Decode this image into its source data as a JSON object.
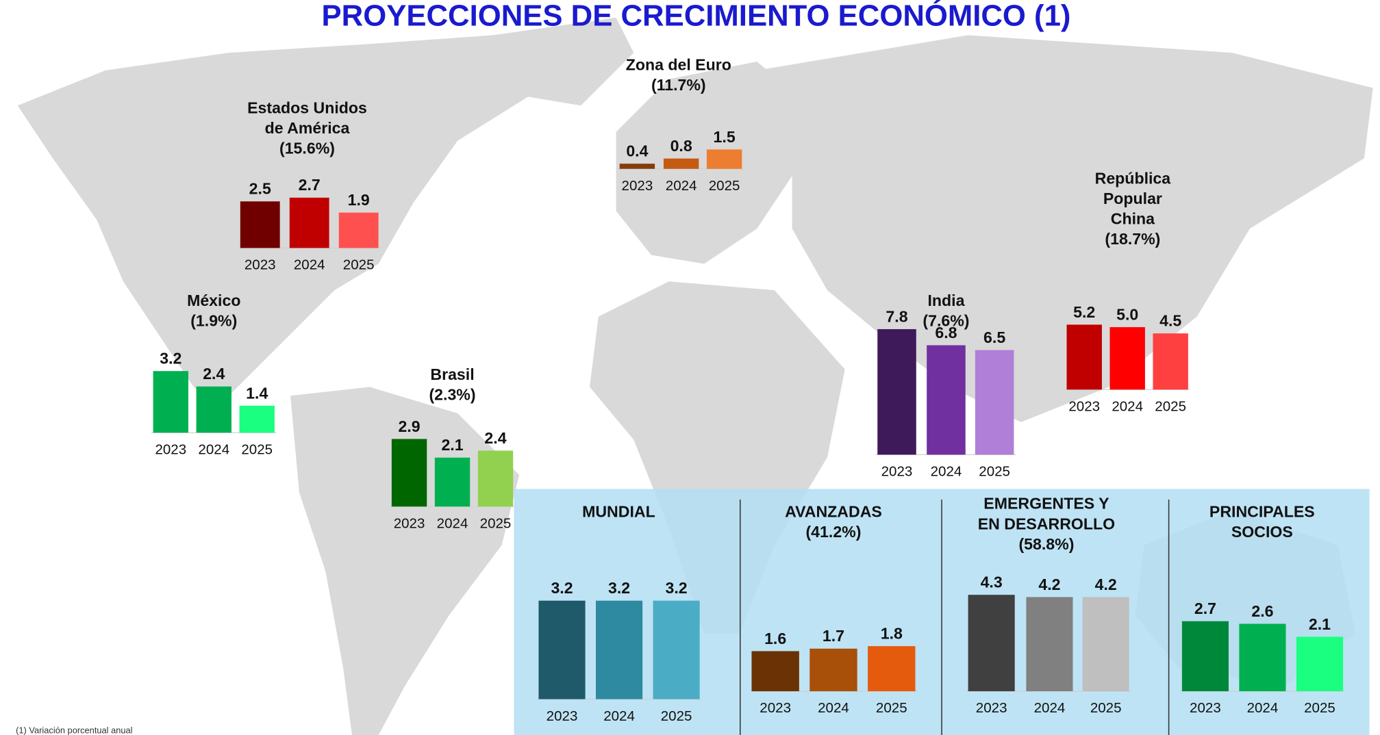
{
  "title": "PROYECCIONES DE CRECIMIENTO ECONÓMICO (1)",
  "note": "(1) Variación porcentual anual",
  "chart_data": [
    {
      "type": "bar",
      "title": [
        "Estados Unidos",
        "de América",
        "(15.6%)"
      ],
      "categories": [
        "2023",
        "2024",
        "2025"
      ],
      "values": [
        2.5,
        2.7,
        1.9
      ],
      "colors": [
        "#700000",
        "#c00000",
        "#ff5050"
      ]
    },
    {
      "type": "bar",
      "title": [
        "Zona del Euro",
        "(11.7%)"
      ],
      "categories": [
        "2023",
        "2024",
        "2025"
      ],
      "values": [
        0.4,
        0.8,
        1.5
      ],
      "colors": [
        "#843c0c",
        "#c55a11",
        "#ed7d31"
      ]
    },
    {
      "type": "bar",
      "title": [
        "México",
        "(1.9%)"
      ],
      "categories": [
        "2023",
        "2024",
        "2025"
      ],
      "values": [
        3.2,
        2.4,
        1.4
      ],
      "colors": [
        "#00b050",
        "#00b050",
        "#1aff80"
      ]
    },
    {
      "type": "bar",
      "title": [
        "Brasil",
        "(2.3%)"
      ],
      "categories": [
        "2023",
        "2024",
        "2025"
      ],
      "values": [
        2.9,
        2.1,
        2.4
      ],
      "colors": [
        "#006600",
        "#00b050",
        "#92d050"
      ]
    },
    {
      "type": "bar",
      "title": [
        "India",
        "(7.6%)"
      ],
      "categories": [
        "2023",
        "2024",
        "2025"
      ],
      "values": [
        7.8,
        6.8,
        6.5
      ],
      "colors": [
        "#3f1a5b",
        "#7030a0",
        "#b07fd8"
      ]
    },
    {
      "type": "bar",
      "title": [
        "República",
        "Popular",
        "China",
        "(18.7%)"
      ],
      "categories": [
        "2023",
        "2024",
        "2025"
      ],
      "values": [
        5.2,
        5.0,
        4.5
      ],
      "value_labels": [
        "5.2",
        "5.0",
        "4.5"
      ],
      "colors": [
        "#c00000",
        "#ff0000",
        "#ff4040"
      ]
    },
    {
      "type": "bar",
      "title": [
        "MUNDIAL"
      ],
      "categories": [
        "2023",
        "2024",
        "2025"
      ],
      "values": [
        3.2,
        3.2,
        3.2
      ],
      "colors": [
        "#1f5a6b",
        "#2e8aa0",
        "#4bacc6"
      ]
    },
    {
      "type": "bar",
      "title": [
        "AVANZADAS",
        "(41.2%)"
      ],
      "categories": [
        "2023",
        "2024",
        "2025"
      ],
      "values": [
        1.6,
        1.7,
        1.8
      ],
      "colors": [
        "#6b3205",
        "#a84f0a",
        "#e55b0e"
      ]
    },
    {
      "type": "bar",
      "title": [
        "EMERGENTES Y",
        "EN DESARROLLO",
        "(58.8%)"
      ],
      "categories": [
        "2023",
        "2024",
        "2025"
      ],
      "values": [
        4.3,
        4.2,
        4.2
      ],
      "colors": [
        "#404040",
        "#808080",
        "#bfbfbf"
      ]
    },
    {
      "type": "bar",
      "title": [
        "PRINCIPALES",
        "SOCIOS"
      ],
      "categories": [
        "2023",
        "2024",
        "2025"
      ],
      "values": [
        2.7,
        2.6,
        2.1
      ],
      "colors": [
        "#00883a",
        "#00b050",
        "#1aff80"
      ]
    }
  ]
}
